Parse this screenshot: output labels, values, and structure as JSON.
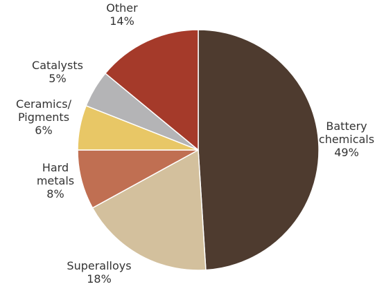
{
  "chart_data": {
    "type": "pie",
    "title": "",
    "slices": [
      {
        "label": "Battery chemicals",
        "label_lines": [
          "Battery",
          "chemicals"
        ],
        "pct_text": "49%",
        "value": 49,
        "color": "#4e3b2f"
      },
      {
        "label": "Superalloys",
        "label_lines": [
          "Superalloys"
        ],
        "pct_text": "18%",
        "value": 18,
        "color": "#d3c09d"
      },
      {
        "label": "Hard metals",
        "label_lines": [
          "Hard",
          "metals"
        ],
        "pct_text": "8%",
        "value": 8,
        "color": "#c06f52"
      },
      {
        "label": "Ceramics/ Pigments",
        "label_lines": [
          "Ceramics/",
          "Pigments"
        ],
        "pct_text": "6%",
        "value": 6,
        "color": "#e8c766"
      },
      {
        "label": "Catalysts",
        "label_lines": [
          "Catalysts"
        ],
        "pct_text": "5%",
        "value": 5,
        "color": "#b4b4b6"
      },
      {
        "label": "Other",
        "label_lines": [
          "Other"
        ],
        "pct_text": "14%",
        "value": 14,
        "color": "#a53a2a"
      }
    ],
    "start": "12 o'clock",
    "direction": "clockwise"
  }
}
